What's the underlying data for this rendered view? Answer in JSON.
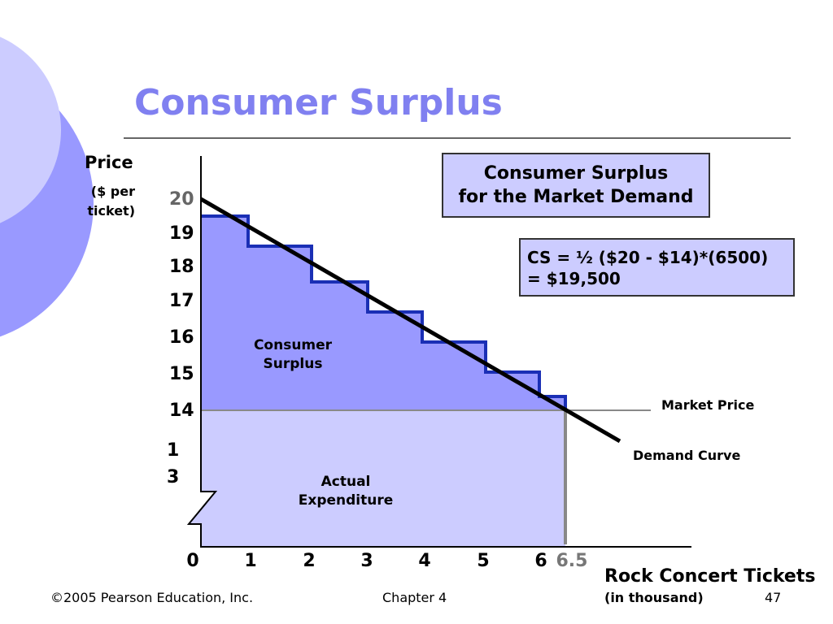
{
  "slide": {
    "title": "Consumer Surplus",
    "y_axis": {
      "label": "Price",
      "unit": "($ per ticket)",
      "ticks": [
        "20",
        "19",
        "18",
        "17",
        "16",
        "15",
        "14",
        "13"
      ]
    },
    "x_axis": {
      "label": "Rock Concert Tickets",
      "unit": "(in thousand)",
      "ticks": [
        "0",
        "1",
        "2",
        "3",
        "4",
        "5",
        "6",
        "6.5"
      ]
    },
    "box_title": [
      "Consumer Surplus",
      "for the Market Demand"
    ],
    "formula": [
      "CS = ½ ($20 - $14)*(6500)",
      "= $19,500"
    ],
    "regions": {
      "surplus": [
        "Consumer",
        "Surplus"
      ],
      "expenditure": [
        "Actual",
        "Expenditure"
      ]
    },
    "line_labels": {
      "market_price": "Market Price",
      "demand": "Demand Curve"
    },
    "footer": {
      "copyright": "©2005 Pearson Education, Inc.",
      "chapter": "Chapter 4",
      "page": "47"
    }
  }
}
